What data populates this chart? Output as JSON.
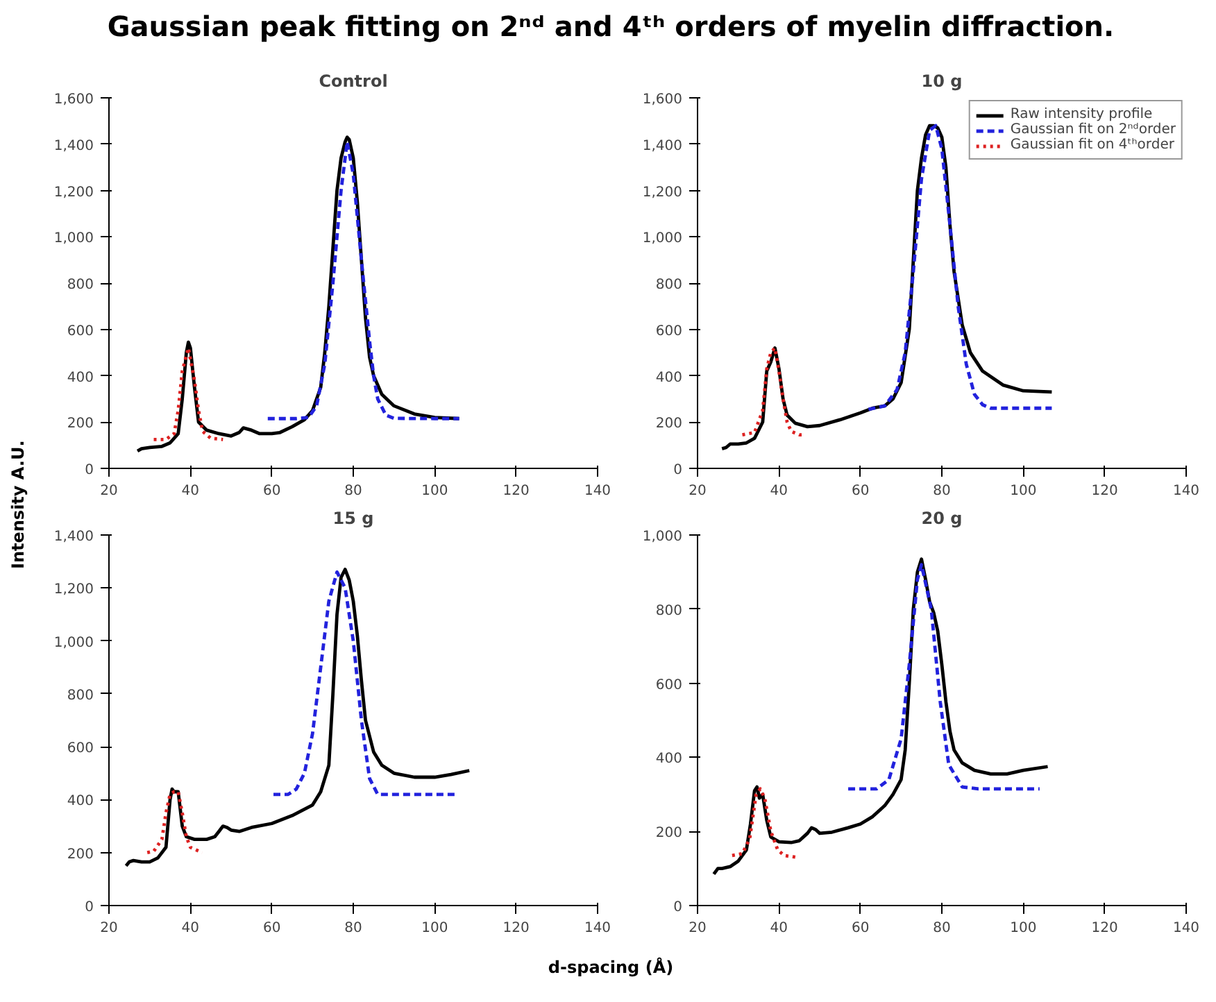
{
  "chart_data": [
    {
      "type": "line",
      "title": "Control",
      "annotations": [
        "Gaussian peak fitting on 2ⁿᵈ and 4ᵗʰ orders of myelin diffraction.",
        "Intensity A.U.",
        "d-spacing (Å)"
      ],
      "xlim": [
        20,
        140
      ],
      "xticks": [
        20,
        40,
        60,
        80,
        100,
        120,
        140
      ],
      "ylim": [
        0,
        1600
      ],
      "yticks": [
        0,
        200,
        400,
        600,
        800,
        {
          "value": 1000,
          "label": "1,000"
        },
        {
          "value": 1200,
          "label": "1,200"
        },
        {
          "value": 1400,
          "label": "1,400"
        },
        {
          "value": 1600,
          "label": "1,600"
        }
      ],
      "grid": false,
      "legend": false,
      "series": [
        {
          "color": "#000000",
          "line_style": "solid",
          "x": [
            27,
            28,
            30,
            33,
            35,
            37,
            38,
            39,
            39.5,
            40,
            41,
            42,
            44,
            47,
            50,
            52,
            53,
            55,
            57,
            60,
            62,
            65,
            68,
            70,
            72,
            73,
            74,
            75,
            76,
            77,
            78,
            78.5,
            79,
            80,
            81,
            82,
            83,
            84,
            85,
            87,
            90,
            95,
            100,
            106
          ],
          "values": [
            75,
            85,
            90,
            95,
            110,
            150,
            300,
            500,
            545,
            520,
            350,
            200,
            165,
            150,
            140,
            155,
            175,
            165,
            150,
            150,
            155,
            180,
            210,
            250,
            350,
            500,
            700,
            950,
            1200,
            1340,
            1410,
            1430,
            1420,
            1340,
            1150,
            900,
            650,
            480,
            400,
            320,
            270,
            235,
            220,
            215
          ]
        },
        {
          "color": "#2222dd",
          "line_style": "dashed",
          "x": [
            59,
            62,
            66,
            69,
            71,
            73,
            75,
            77,
            78.5,
            80,
            82,
            84,
            85,
            86,
            88,
            90,
            100,
            106
          ],
          "values": [
            215,
            215,
            215,
            220,
            270,
            450,
            800,
            1200,
            1410,
            1270,
            900,
            550,
            400,
            300,
            230,
            216,
            215,
            215
          ]
        },
        {
          "color": "#dd2222",
          "line_style": "dotted",
          "x": [
            31,
            34,
            36,
            37,
            38,
            39.5,
            41,
            42,
            43,
            45,
            48
          ],
          "values": [
            125,
            125,
            150,
            250,
            420,
            520,
            380,
            250,
            160,
            130,
            125
          ]
        }
      ]
    },
    {
      "type": "line",
      "title": "10 g",
      "xlim": [
        20,
        140
      ],
      "xticks": [
        20,
        40,
        60,
        80,
        100,
        120,
        140
      ],
      "ylim": [
        0,
        1600
      ],
      "yticks": [
        0,
        200,
        400,
        600,
        800,
        {
          "value": 1000,
          "label": "1,000"
        },
        {
          "value": 1200,
          "label": "1,200"
        },
        {
          "value": 1400,
          "label": "1,400"
        },
        {
          "value": 1600,
          "label": "1,600"
        }
      ],
      "grid": false,
      "legend": "top right",
      "series": [
        {
          "name": "Raw intensity profile",
          "color": "#000000",
          "line_style": "solid",
          "x": [
            26,
            27,
            28,
            30,
            32,
            34,
            36,
            37,
            38,
            39,
            40,
            41,
            42,
            44,
            47,
            50,
            55,
            60,
            63,
            66,
            68,
            70,
            72,
            73,
            74,
            75,
            76,
            77,
            78,
            79,
            80,
            81,
            82,
            83,
            85,
            87,
            90,
            95,
            100,
            107
          ],
          "values": [
            85,
            90,
            105,
            105,
            110,
            130,
            200,
            420,
            460,
            520,
            430,
            300,
            230,
            195,
            180,
            185,
            210,
            240,
            260,
            270,
            300,
            370,
            600,
            900,
            1200,
            1340,
            1440,
            1480,
            1480,
            1470,
            1430,
            1300,
            1050,
            850,
            620,
            500,
            420,
            360,
            335,
            330
          ]
        },
        {
          "name": "Gaussian fit on 2ⁿᵈorder",
          "color": "#2222dd",
          "line_style": "dashed",
          "x": [
            62,
            66,
            69,
            71,
            73,
            75,
            77,
            78.5,
            80,
            82,
            84,
            86,
            88,
            90,
            92,
            107
          ],
          "values": [
            255,
            270,
            340,
            500,
            850,
            1250,
            1460,
            1480,
            1380,
            1050,
            700,
            450,
            320,
            275,
            260,
            260
          ]
        },
        {
          "name": "Gaussian fit on 4ᵗʰorder",
          "color": "#dd2222",
          "line_style": "dotted",
          "x": [
            31,
            34,
            36,
            37,
            38,
            39,
            40,
            41,
            42,
            43,
            45,
            46
          ],
          "values": [
            145,
            155,
            250,
            430,
            500,
            520,
            420,
            300,
            200,
            160,
            145,
            145
          ]
        }
      ]
    },
    {
      "type": "line",
      "title": "15 g",
      "xlim": [
        20,
        140
      ],
      "xticks": [
        20,
        40,
        60,
        80,
        100,
        120,
        140
      ],
      "ylim": [
        0,
        1400
      ],
      "yticks": [
        0,
        200,
        400,
        600,
        800,
        {
          "value": 1000,
          "label": "1,000"
        },
        {
          "value": 1200,
          "label": "1,200"
        },
        {
          "value": 1400,
          "label": "1,400"
        }
      ],
      "grid": false,
      "legend": false,
      "series": [
        {
          "color": "#000000",
          "line_style": "solid",
          "x": [
            24.2,
            25,
            26,
            28,
            30,
            32,
            34,
            35,
            35.5,
            36,
            37,
            38,
            39,
            41,
            44,
            46,
            47,
            48,
            49,
            50,
            52,
            55,
            60,
            65,
            70,
            72,
            74,
            75,
            76,
            77,
            78,
            79,
            80,
            81,
            82,
            83,
            85,
            87,
            90,
            95,
            100,
            104,
            108.5
          ],
          "values": [
            150,
            165,
            170,
            165,
            165,
            180,
            220,
            400,
            440,
            430,
            430,
            300,
            260,
            250,
            250,
            260,
            280,
            300,
            295,
            285,
            280,
            295,
            310,
            340,
            380,
            430,
            530,
            800,
            1100,
            1240,
            1270,
            1230,
            1150,
            1020,
            850,
            700,
            580,
            530,
            500,
            485,
            485,
            495,
            510
          ]
        },
        {
          "color": "#2222dd",
          "line_style": "dashed",
          "x": [
            60.4,
            64,
            66,
            68,
            70,
            72,
            74,
            76,
            78,
            80,
            82,
            84,
            86,
            90,
            105
          ],
          "values": [
            420,
            420,
            440,
            500,
            650,
            900,
            1150,
            1260,
            1200,
            1000,
            700,
            480,
            420,
            420,
            420
          ]
        },
        {
          "color": "#dd2222",
          "line_style": "dotted",
          "x": [
            29.4,
            31,
            33,
            34,
            35,
            36,
            37,
            38,
            39,
            40,
            42.9
          ],
          "values": [
            200,
            205,
            250,
            350,
            420,
            430,
            430,
            350,
            260,
            220,
            200
          ]
        }
      ]
    },
    {
      "type": "line",
      "title": "20 g",
      "xlim": [
        20,
        140
      ],
      "xticks": [
        20,
        40,
        60,
        80,
        100,
        120,
        140
      ],
      "ylim": [
        0,
        1000
      ],
      "yticks": [
        0,
        200,
        400,
        600,
        800,
        {
          "value": 1000,
          "label": "1,000"
        }
      ],
      "grid": false,
      "legend": false,
      "series": [
        {
          "color": "#000000",
          "line_style": "solid",
          "x": [
            24,
            25,
            26,
            28,
            30,
            32,
            33,
            34,
            34.6,
            35.2,
            36,
            37,
            38,
            40,
            43,
            45,
            47,
            48,
            49,
            50,
            53,
            57,
            60,
            63,
            66,
            68,
            70,
            71,
            72,
            73,
            74,
            75,
            76,
            77,
            78,
            79,
            80,
            81,
            82,
            83,
            85,
            88,
            92,
            96,
            100,
            106
          ],
          "values": [
            85,
            100,
            100,
            105,
            120,
            150,
            220,
            310,
            320,
            290,
            300,
            230,
            185,
            172,
            170,
            175,
            195,
            210,
            205,
            195,
            198,
            210,
            220,
            240,
            270,
            300,
            340,
            420,
            600,
            800,
            900,
            935,
            880,
            820,
            790,
            740,
            650,
            550,
            470,
            420,
            385,
            365,
            355,
            355,
            365,
            375
          ]
        },
        {
          "color": "#2222dd",
          "line_style": "dashed",
          "x": [
            57,
            64,
            67,
            70,
            72,
            74,
            75,
            77.4,
            79.6,
            81.7,
            85,
            89,
            104
          ],
          "values": [
            315,
            315,
            340,
            450,
            650,
            880,
            920,
            800,
            550,
            380,
            320,
            315,
            315
          ]
        },
        {
          "color": "#dd2222",
          "line_style": "dotted",
          "x": [
            28.5,
            31,
            32.8,
            34.4,
            35.4,
            36.5,
            38,
            39.7,
            41.3,
            44.5
          ],
          "values": [
            135,
            140,
            180,
            300,
            315,
            290,
            200,
            150,
            135,
            130
          ]
        }
      ]
    }
  ]
}
